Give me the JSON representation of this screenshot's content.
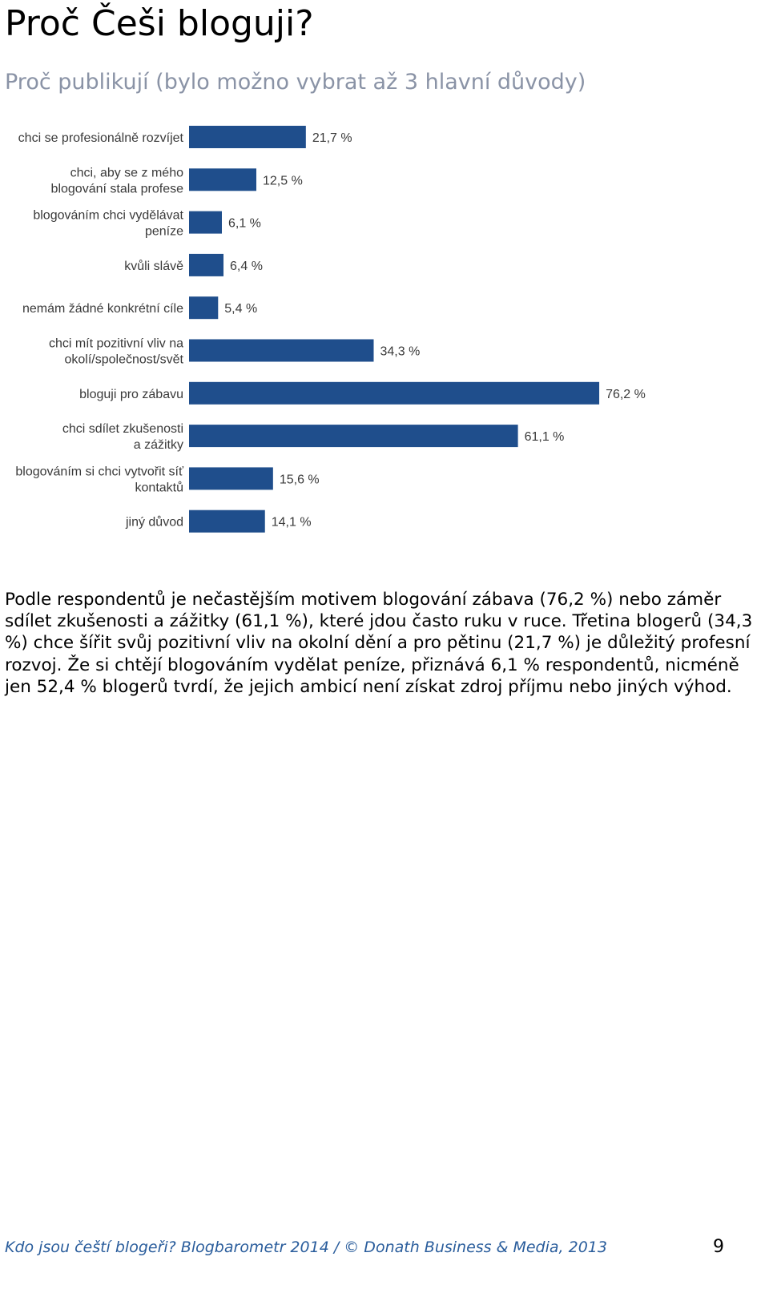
{
  "page": {
    "title": "Proč Češi bloguji?",
    "subtitle": "Proč publikují (bylo možno vybrat až 3 hlavní důvody)"
  },
  "chart_data": {
    "type": "bar",
    "orientation": "horizontal",
    "bar_color": "#1f4e8c",
    "xlim": [
      0,
      100
    ],
    "categories": [
      [
        "chci se profesionálně rozvíjet"
      ],
      [
        "chci, aby se z mého",
        "blogování stala profese"
      ],
      [
        "blogováním chci vydělávat",
        "peníze"
      ],
      [
        "kvůli slávě"
      ],
      [
        "nemám žádné konkrétní cíle"
      ],
      [
        "chci mít pozitivní vliv na",
        "okolí/společnost/svět"
      ],
      [
        "bloguji pro zábavu"
      ],
      [
        "chci sdílet zkušenosti",
        "a zážitky"
      ],
      [
        "blogováním si chci vytvořit síť",
        "kontaktů"
      ],
      [
        "jiný důvod"
      ]
    ],
    "values": [
      21.7,
      12.5,
      6.1,
      6.4,
      5.4,
      34.3,
      76.2,
      61.1,
      15.6,
      14.1
    ],
    "value_labels": [
      "21,7 %",
      "12,5 %",
      "6,1 %",
      "6,4 %",
      "5,4 %",
      "34,3 %",
      "76,2 %",
      "61,1 %",
      "15,6 %",
      "14,1 %"
    ]
  },
  "body": {
    "paragraph": "Podle respondentů je nečastějším motivem blogování zábava (76,2 %) nebo záměr sdílet zkušenosti a zážitky (61,1 %), které jdou často ruku v ruce. Třetina blogerů (34,3 %) chce šířit svůj pozitivní vliv na okolní dění a pro pětinu (21,7 %) je důležitý profesní rozvoj. Že si chtějí blogováním vydělat peníze, přiznává 6,1 % respondentů, nicméně jen 52,4 % blogerů tvrdí, že jejich ambicí není získat zdroj příjmu nebo jiných výhod."
  },
  "footer": {
    "source": "Kdo jsou čeští blogeři? Blogbarometr 2014 / © Donath Business & Media, 2013",
    "page_number": "9"
  }
}
